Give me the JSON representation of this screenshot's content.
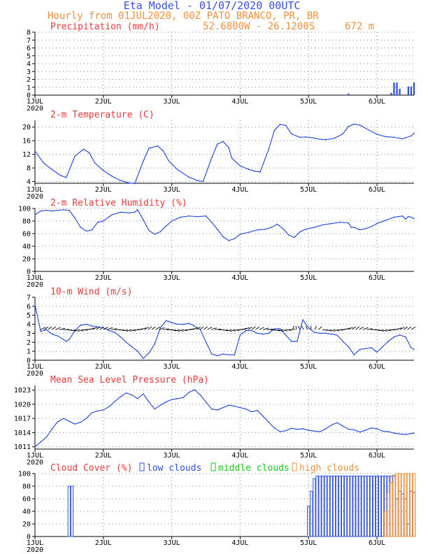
{
  "header": {
    "title": "Eta Model - 01/07/2020 00UTC",
    "subtitle": "Hourly from 01JUL2020, 00Z  PATO_BRANCO, PR, BR",
    "location": "52.6800W - 26.1200S",
    "elevation": "672  m"
  },
  "colors": {
    "title": "#3a50e8",
    "subtitle": "#f0903a",
    "panel_title": "#e83a3a",
    "line": "#2f4fe0",
    "low": "#2f4fe0",
    "middle": "#19c619",
    "high": "#f0903a",
    "vector": "#000000",
    "axis": "#000000",
    "grid": "#8a8a8a"
  },
  "x_axis": {
    "ticks": [
      {
        "hour": 0,
        "label": "1JUL",
        "sub": "2020"
      },
      {
        "hour": 24,
        "label": "2JUL",
        "sub": ""
      },
      {
        "hour": 48,
        "label": "3JUL",
        "sub": ""
      },
      {
        "hour": 72,
        "label": "4JUL",
        "sub": ""
      },
      {
        "hour": 96,
        "label": "5JUL",
        "sub": ""
      },
      {
        "hour": 120,
        "label": "6JUL",
        "sub": ""
      }
    ]
  },
  "chart_data": [
    {
      "type": "bar",
      "title": "Precipitation (mm/h)",
      "ylim": [
        0,
        8
      ],
      "yticks": [
        0,
        1,
        2,
        3,
        4,
        5,
        6,
        7,
        8
      ],
      "x": [
        110,
        125,
        126,
        127,
        128,
        131,
        132,
        133
      ],
      "values": [
        0.2,
        0.3,
        1.6,
        1.6,
        0.8,
        1.1,
        1.1,
        1.6
      ]
    },
    {
      "type": "line",
      "title": "2-m Temperature (C)",
      "ylim": [
        3.5,
        22
      ],
      "yticks": [
        4,
        8,
        12,
        16,
        20
      ],
      "x": [
        0,
        3,
        6,
        9,
        11,
        14,
        17,
        19,
        21,
        24,
        27,
        30,
        33,
        35,
        38,
        40,
        43,
        45,
        47,
        50,
        54,
        57,
        59,
        62,
        64,
        66,
        68,
        69,
        72,
        75,
        77,
        79,
        82,
        84,
        86,
        88,
        90,
        93,
        95,
        98,
        100,
        102,
        105,
        108,
        110,
        112,
        114,
        117,
        120,
        123,
        126,
        129,
        132,
        133
      ],
      "values": [
        13,
        9.5,
        7.5,
        5.8,
        5.2,
        11.5,
        13.5,
        12.5,
        9.5,
        7.2,
        5.6,
        4.3,
        3.6,
        3.4,
        10,
        13.8,
        14.5,
        13,
        10,
        7.5,
        5.3,
        4.3,
        4,
        11,
        15,
        15.8,
        14,
        11,
        8.6,
        7.6,
        7.1,
        6.8,
        13.5,
        19,
        20.8,
        20.5,
        18,
        17,
        17.1,
        16.8,
        16.4,
        16.3,
        16.7,
        18,
        20.2,
        20.9,
        20.6,
        19.2,
        17.9,
        17.2,
        17.0,
        16.6,
        17.4,
        18.2
      ]
    },
    {
      "type": "line",
      "title": "2-m Relative Humidity (%)",
      "ylim": [
        0,
        100
      ],
      "yticks": [
        0,
        20,
        40,
        60,
        80,
        100
      ],
      "x": [
        0,
        2,
        4,
        6,
        8,
        10,
        12,
        14,
        16,
        18,
        20,
        22,
        24,
        27,
        30,
        33,
        35,
        36,
        38,
        40,
        42,
        44,
        46,
        48,
        51,
        54,
        57,
        60,
        62,
        64,
        66,
        68,
        70,
        72,
        75,
        78,
        81,
        83,
        85,
        87,
        89,
        91,
        93,
        95,
        98,
        101,
        104,
        107,
        110,
        111,
        112,
        114,
        116,
        118,
        120,
        123,
        126,
        129,
        130,
        131,
        132,
        133
      ],
      "values": [
        90,
        96,
        97,
        96,
        97,
        98,
        97,
        85,
        70,
        64,
        66,
        78,
        80,
        90,
        94,
        93,
        94,
        98,
        82,
        65,
        59,
        63,
        72,
        80,
        86,
        88,
        87,
        88,
        78,
        67,
        55,
        49,
        52,
        59,
        62,
        66,
        67,
        70,
        75,
        68,
        58,
        54,
        63,
        67,
        70,
        74,
        76,
        78,
        77,
        70,
        70,
        66,
        68,
        71,
        76,
        81,
        86,
        88,
        83,
        87,
        86,
        84
      ]
    },
    {
      "type": "line",
      "title": "10-m Wind (m/s)",
      "ylim": [
        0,
        7
      ],
      "yticks": [
        0,
        1,
        2,
        3,
        4,
        5,
        6,
        7
      ],
      "x": [
        0,
        2,
        4,
        6,
        8,
        10,
        11,
        12,
        14,
        16,
        18,
        20,
        22,
        24,
        26,
        28,
        30,
        32,
        34,
        36,
        38,
        40,
        42,
        44,
        46,
        48,
        50,
        52,
        54,
        56,
        58,
        60,
        62,
        64,
        66,
        68,
        70,
        72,
        74,
        76,
        78,
        80,
        82,
        84,
        86,
        88,
        90,
        92,
        94,
        96,
        98,
        100,
        102,
        104,
        106,
        108,
        110,
        112,
        114,
        116,
        118,
        120,
        122,
        124,
        126,
        128,
        130,
        132,
        133
      ],
      "values": [
        6.2,
        3.2,
        3.4,
        2.9,
        2.7,
        2.3,
        2.1,
        2.3,
        3.3,
        3.9,
        4.0,
        3.8,
        3.7,
        3.6,
        3.3,
        3.1,
        2.6,
        2.0,
        1.5,
        1.0,
        0.2,
        0.8,
        1.8,
        3.6,
        4.4,
        4.2,
        4.0,
        4.0,
        4.1,
        3.8,
        3.4,
        2.0,
        0.7,
        0.5,
        0.7,
        0.6,
        0.6,
        2.8,
        3.3,
        3.3,
        3.0,
        2.9,
        3.0,
        3.5,
        3.5,
        2.8,
        2.1,
        2.1,
        4.5,
        3.6,
        3.1,
        3.0,
        3.0,
        2.9,
        2.8,
        2.1,
        1.5,
        0.6,
        1.2,
        1.3,
        1.4,
        0.9,
        1.5,
        2.1,
        2.6,
        2.8,
        2.6,
        1.4,
        1.2
      ]
    },
    {
      "type": "line",
      "title": "Mean Sea Level Pressure (hPa)",
      "ylim": [
        1010.5,
        1024
      ],
      "yticks": [
        1011,
        1014,
        1017,
        1020,
        1023
      ],
      "x": [
        0,
        2,
        4,
        6,
        8,
        10,
        12,
        14,
        16,
        18,
        20,
        22,
        24,
        26,
        28,
        30,
        32,
        34,
        36,
        38,
        40,
        42,
        44,
        46,
        48,
        50,
        52,
        54,
        56,
        58,
        60,
        62,
        64,
        66,
        68,
        70,
        72,
        74,
        76,
        78,
        80,
        82,
        84,
        86,
        88,
        90,
        92,
        94,
        96,
        98,
        100,
        102,
        104,
        106,
        108,
        110,
        112,
        114,
        116,
        118,
        120,
        122,
        124,
        126,
        128,
        130,
        132,
        133
      ],
      "values": [
        1011,
        1012,
        1013,
        1014.8,
        1016.3,
        1017,
        1016.4,
        1015.8,
        1016.2,
        1017,
        1018.2,
        1018.6,
        1018.8,
        1019.5,
        1020.6,
        1021.6,
        1022.4,
        1022.0,
        1021.2,
        1022.2,
        1020.5,
        1019,
        1019.8,
        1020.5,
        1021,
        1021.2,
        1021.4,
        1022.5,
        1023.1,
        1022,
        1020.5,
        1019,
        1018.8,
        1019.3,
        1019.8,
        1019.6,
        1019.3,
        1019,
        1018.4,
        1018.7,
        1017.5,
        1016.2,
        1015,
        1014.2,
        1014.4,
        1014.9,
        1014.7,
        1014.8,
        1014.5,
        1014.3,
        1014.2,
        1014.8,
        1015.6,
        1016.1,
        1015.4,
        1014.7,
        1014.6,
        1014.1,
        1014.5,
        1015,
        1014.8,
        1014.3,
        1014.2,
        1013.9,
        1013.7,
        1013.6,
        1013.8,
        1013.9
      ]
    },
    {
      "type": "bar",
      "title": "Cloud Cover (%)",
      "legend": [
        "low clouds",
        "middle clouds",
        "high clouds"
      ],
      "ylim": [
        0,
        100
      ],
      "yticks": [
        0,
        20,
        40,
        60,
        80,
        100
      ],
      "x": [
        0,
        12,
        13,
        96,
        97,
        98,
        99,
        100,
        101,
        102,
        103,
        104,
        105,
        106,
        107,
        108,
        109,
        110,
        111,
        112,
        113,
        114,
        115,
        116,
        117,
        118,
        119,
        120,
        121,
        122,
        123,
        124,
        125,
        126,
        127,
        128,
        129,
        130,
        131,
        132,
        133
      ],
      "series": [
        {
          "name": "low clouds",
          "values": [
            0,
            80,
            80,
            48,
            72,
            92,
            96,
            96,
            96,
            96,
            96,
            96,
            96,
            96,
            96,
            96,
            96,
            96,
            96,
            96,
            96,
            96,
            96,
            96,
            96,
            96,
            96,
            96,
            96,
            96,
            96,
            96,
            96,
            96,
            60,
            72,
            68,
            60,
            20,
            72,
            70
          ]
        },
        {
          "name": "middle clouds",
          "values": [
            0,
            0,
            0,
            0,
            0,
            0,
            0,
            0,
            0,
            0,
            0,
            0,
            0,
            0,
            0,
            0,
            0,
            0,
            0,
            0,
            0,
            0,
            0,
            0,
            0,
            0,
            0,
            0,
            0,
            0,
            0,
            0,
            0,
            0,
            0,
            0,
            0,
            0,
            0,
            0,
            0
          ]
        },
        {
          "name": "high clouds",
          "values": [
            0,
            0,
            0,
            0,
            0,
            0,
            0,
            0,
            0,
            0,
            0,
            0,
            0,
            0,
            0,
            0,
            0,
            0,
            0,
            0,
            0,
            0,
            0,
            0,
            0,
            0,
            0,
            0,
            0,
            0,
            40,
            70,
            85,
            98,
            100,
            100,
            100,
            100,
            100,
            100,
            100
          ]
        }
      ]
    }
  ]
}
